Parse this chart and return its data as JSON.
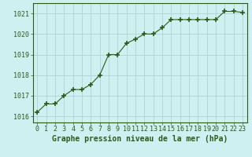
{
  "x": [
    0,
    1,
    2,
    3,
    4,
    5,
    6,
    7,
    8,
    9,
    10,
    11,
    12,
    13,
    14,
    15,
    16,
    17,
    18,
    19,
    20,
    21,
    22,
    23
  ],
  "y": [
    1016.2,
    1016.6,
    1016.6,
    1017.0,
    1017.3,
    1017.3,
    1017.55,
    1018.0,
    1019.0,
    1019.0,
    1019.55,
    1019.75,
    1020.0,
    1020.0,
    1020.3,
    1020.7,
    1020.7,
    1020.7,
    1020.7,
    1020.7,
    1020.7,
    1021.1,
    1021.1,
    1021.05
  ],
  "line_color": "#2d5a1b",
  "marker_color": "#2d5a1b",
  "bg_color": "#cef0f0",
  "grid_color": "#aacece",
  "xlabel": "Graphe pression niveau de la mer (hPa)",
  "xlabel_color": "#2d5a1b",
  "xlabel_fontsize": 7,
  "yticks": [
    1016,
    1017,
    1018,
    1019,
    1020,
    1021
  ],
  "xticks": [
    0,
    1,
    2,
    3,
    4,
    5,
    6,
    7,
    8,
    9,
    10,
    11,
    12,
    13,
    14,
    15,
    16,
    17,
    18,
    19,
    20,
    21,
    22,
    23
  ],
  "ylim": [
    1015.7,
    1021.5
  ],
  "xlim": [
    -0.5,
    23.5
  ],
  "tick_color": "#2d5a1b",
  "tick_fontsize": 6,
  "spine_color": "#2d5a1b"
}
